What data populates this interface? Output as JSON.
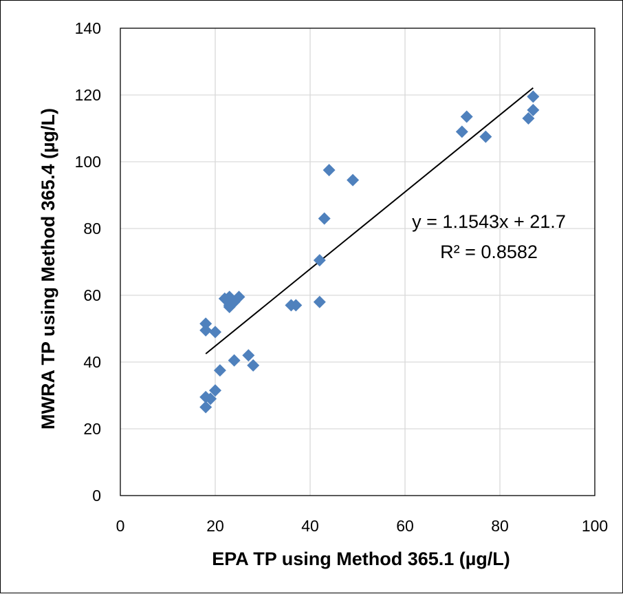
{
  "chart_data": {
    "type": "scatter",
    "title": "",
    "xlabel": "EPA TP using Method 365.1  (µg/L)",
    "ylabel": "MWRA TP using Method 365.4  (µg/L)",
    "xlim": [
      0,
      100
    ],
    "ylim": [
      0,
      140
    ],
    "x_ticks": [
      0,
      20,
      40,
      60,
      80,
      100
    ],
    "y_ticks": [
      0,
      20,
      40,
      60,
      80,
      100,
      120,
      140
    ],
    "x_tick_labels": [
      "0",
      "20",
      "40",
      "60",
      "80",
      "100"
    ],
    "y_tick_labels": [
      "0",
      "20",
      "40",
      "60",
      "80",
      "100",
      "120",
      "140"
    ],
    "grid": "major gridlines on both axes",
    "marker": "diamond",
    "marker_color": "#4f81bd",
    "series": [
      {
        "points": [
          [
            18,
            51.5
          ],
          [
            18,
            49.5
          ],
          [
            20,
            49
          ],
          [
            18,
            29.5
          ],
          [
            18,
            26.5
          ],
          [
            19,
            29
          ],
          [
            20,
            31.5
          ],
          [
            21,
            37.5
          ],
          [
            22,
            59
          ],
          [
            23,
            57
          ],
          [
            23,
            56.5
          ],
          [
            23,
            59.5
          ],
          [
            24,
            58
          ],
          [
            25,
            59.5
          ],
          [
            24,
            40.5
          ],
          [
            27,
            42
          ],
          [
            28,
            39
          ],
          [
            36,
            57
          ],
          [
            37,
            57
          ],
          [
            42,
            58
          ],
          [
            42,
            70.5
          ],
          [
            43,
            83
          ],
          [
            44,
            97.5
          ],
          [
            49,
            94.5
          ],
          [
            72,
            109
          ],
          [
            73,
            113.5
          ],
          [
            77,
            107.5
          ],
          [
            86,
            113
          ],
          [
            87,
            115.5
          ],
          [
            87,
            119.5
          ]
        ]
      }
    ],
    "trendline": {
      "type": "linear",
      "slope": 1.1543,
      "intercept": 21.7,
      "x_range": [
        18,
        87
      ],
      "color": "#000000",
      "equation_label": "y = 1.1543x + 21.7",
      "r2_label": "R² = 0.8582"
    }
  }
}
